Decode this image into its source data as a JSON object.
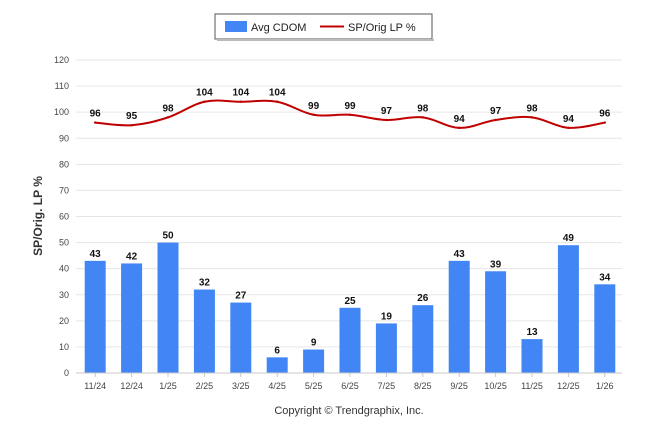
{
  "chart_data": {
    "type": "bar",
    "categories": [
      "11/24",
      "12/24",
      "1/25",
      "2/25",
      "3/25",
      "4/25",
      "5/25",
      "6/25",
      "7/25",
      "8/25",
      "9/25",
      "10/25",
      "11/25",
      "12/25",
      "1/26"
    ],
    "series": [
      {
        "name": "Avg CDOM",
        "kind": "bar",
        "color": "#4285f4",
        "values": [
          43,
          42,
          50,
          32,
          27,
          6,
          9,
          25,
          19,
          26,
          43,
          39,
          13,
          49,
          34
        ]
      },
      {
        "name": "SP/Orig LP %",
        "kind": "line",
        "color": "#c00000",
        "values": [
          96,
          95,
          98,
          104,
          104,
          104,
          99,
          99,
          97,
          98,
          94,
          97,
          98,
          94,
          96
        ]
      }
    ],
    "ylabel": "SP/Orig. LP %",
    "xlabel": "",
    "ylim": [
      0,
      120
    ],
    "yticks": [
      0,
      10,
      20,
      30,
      40,
      50,
      60,
      70,
      80,
      90,
      100,
      110,
      120
    ],
    "grid": true,
    "legend_position": "top-center",
    "credit": "Copyright © Trendgraphix, Inc."
  }
}
